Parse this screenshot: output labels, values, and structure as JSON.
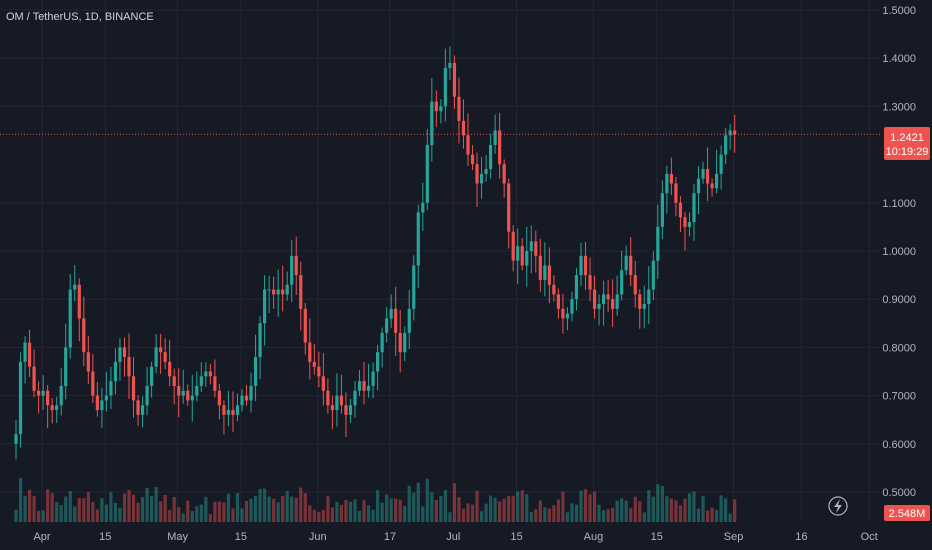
{
  "header": {
    "symbol_title": "OM / TetherUS, 1D, BINANCE"
  },
  "colors": {
    "background": "#161a25",
    "grid": "#242733",
    "up": "#26a69a",
    "down": "#ef5350",
    "price_line": "#ef5350",
    "label_text": "#ffffff",
    "axis_text": "#b2b5be"
  },
  "icons": {
    "flash": "lightning-icon"
  },
  "price_badge": {
    "price": "1.2421",
    "countdown": "10:19:29"
  },
  "volume_badge": {
    "value": "2.548M"
  },
  "chart_data": {
    "type": "candlestick",
    "ylim": [
      0.48,
      1.5
    ],
    "current_price": 1.2421,
    "y_ticks": [
      "1.5000",
      "1.4000",
      "1.3000",
      "1.1000",
      "1.0000",
      "0.9000",
      "0.8000",
      "0.7000",
      "0.6000",
      "0.5000"
    ],
    "x_ticks": [
      {
        "label": "Apr",
        "day": 0
      },
      {
        "label": "15",
        "day": 14
      },
      {
        "label": "May",
        "day": 30
      },
      {
        "label": "15",
        "day": 44
      },
      {
        "label": "Jun",
        "day": 61
      },
      {
        "label": "17",
        "day": 77
      },
      {
        "label": "Jul",
        "day": 91
      },
      {
        "label": "15",
        "day": 105
      },
      {
        "label": "Aug",
        "day": 122
      },
      {
        "label": "15",
        "day": 136
      },
      {
        "label": "Sep",
        "day": 153
      },
      {
        "label": "16",
        "day": 168
      },
      {
        "label": "Oct",
        "day": 183
      }
    ],
    "close": [
      0.62,
      0.77,
      0.81,
      0.76,
      0.71,
      0.7,
      0.71,
      0.68,
      0.67,
      0.68,
      0.72,
      0.8,
      0.92,
      0.93,
      0.86,
      0.79,
      0.75,
      0.7,
      0.67,
      0.69,
      0.7,
      0.73,
      0.77,
      0.8,
      0.78,
      0.74,
      0.69,
      0.66,
      0.68,
      0.72,
      0.76,
      0.8,
      0.79,
      0.77,
      0.74,
      0.72,
      0.7,
      0.71,
      0.69,
      0.7,
      0.72,
      0.74,
      0.75,
      0.74,
      0.71,
      0.68,
      0.66,
      0.67,
      0.66,
      0.68,
      0.7,
      0.69,
      0.72,
      0.78,
      0.85,
      0.92,
      0.92,
      0.91,
      0.92,
      0.91,
      0.93,
      0.99,
      0.95,
      0.88,
      0.81,
      0.77,
      0.76,
      0.74,
      0.71,
      0.68,
      0.67,
      0.7,
      0.68,
      0.66,
      0.68,
      0.71,
      0.73,
      0.71,
      0.72,
      0.75,
      0.79,
      0.83,
      0.86,
      0.88,
      0.83,
      0.79,
      0.83,
      0.88,
      0.97,
      1.08,
      1.1,
      1.22,
      1.31,
      1.29,
      1.3,
      1.38,
      1.39,
      1.32,
      1.27,
      1.24,
      1.2,
      1.18,
      1.14,
      1.16,
      1.17,
      1.22,
      1.25,
      1.18,
      1.14,
      1.04,
      0.98,
      1.01,
      0.97,
      1.0,
      1.02,
      0.99,
      0.94,
      0.97,
      0.93,
      0.91,
      0.88,
      0.86,
      0.87,
      0.9,
      0.95,
      0.99,
      0.95,
      0.92,
      0.88,
      0.89,
      0.91,
      0.9,
      0.88,
      0.91,
      0.96,
      0.99,
      0.95,
      0.91,
      0.88,
      0.89,
      0.92,
      0.98,
      1.05,
      1.12,
      1.16,
      1.14,
      1.1,
      1.07,
      1.05,
      1.06,
      1.12,
      1.15,
      1.17,
      1.14,
      1.13,
      1.16,
      1.2,
      1.24,
      1.25,
      1.2421
    ]
  }
}
